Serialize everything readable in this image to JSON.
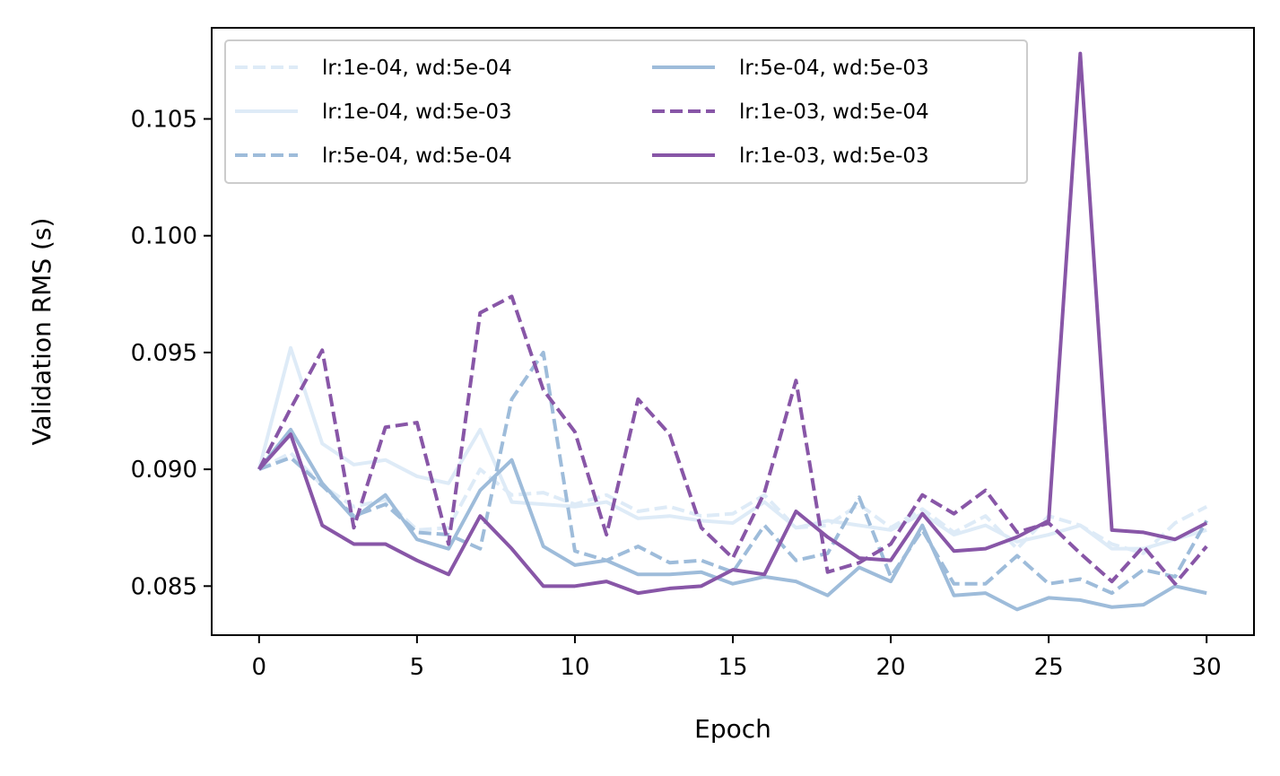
{
  "chart_data": {
    "type": "line",
    "title": "",
    "xlabel": "Epoch",
    "ylabel": "Validation RMS (s)",
    "xlim": [
      -1.5,
      31.5
    ],
    "ylim": [
      0.0829,
      0.1089
    ],
    "xticks": [
      0,
      5,
      10,
      15,
      20,
      25,
      30
    ],
    "yticks": [
      0.085,
      0.09,
      0.095,
      0.1,
      0.105
    ],
    "ytick_labels": [
      "0.085",
      "0.090",
      "0.095",
      "0.100",
      "0.105"
    ],
    "grid": false,
    "legend_position": "upper-left",
    "legend_columns": 2,
    "x": [
      0,
      1,
      2,
      3,
      4,
      5,
      6,
      7,
      8,
      9,
      10,
      11,
      12,
      13,
      14,
      15,
      16,
      17,
      18,
      19,
      20,
      21,
      22,
      23,
      24,
      25,
      26,
      27,
      28,
      29,
      30
    ],
    "series": [
      {
        "name": "lr:1e-04, wd:5e-04",
        "color": "#deebf7",
        "dash": "dashed",
        "values": [
          0.09,
          0.0907,
          0.0893,
          0.0884,
          0.0887,
          0.0874,
          0.0875,
          0.09,
          0.0889,
          0.089,
          0.0885,
          0.0889,
          0.0882,
          0.0884,
          0.088,
          0.0881,
          0.0889,
          0.0875,
          0.0876,
          0.0885,
          0.0875,
          0.0883,
          0.0873,
          0.088,
          0.0866,
          0.088,
          0.0876,
          0.0868,
          0.0864,
          0.0877,
          0.0884
        ]
      },
      {
        "name": "lr:1e-04, wd:5e-03",
        "color": "#deebf7",
        "dash": "solid",
        "values": [
          0.09,
          0.0952,
          0.0911,
          0.0902,
          0.0904,
          0.0897,
          0.0894,
          0.0917,
          0.0886,
          0.0885,
          0.0884,
          0.0886,
          0.0879,
          0.088,
          0.0878,
          0.0877,
          0.0886,
          0.0875,
          0.0878,
          0.0876,
          0.0874,
          0.0881,
          0.0872,
          0.0876,
          0.0869,
          0.0872,
          0.0876,
          0.0866,
          0.0866,
          0.087,
          0.0874
        ]
      },
      {
        "name": "lr:5e-04, wd:5e-04",
        "color": "#9ebcda",
        "dash": "dashed",
        "values": [
          0.09,
          0.0905,
          0.0893,
          0.088,
          0.0885,
          0.0873,
          0.0872,
          0.0866,
          0.093,
          0.095,
          0.0865,
          0.0861,
          0.0867,
          0.086,
          0.0861,
          0.0856,
          0.0876,
          0.0861,
          0.0864,
          0.0888,
          0.0854,
          0.0874,
          0.0851,
          0.0851,
          0.0863,
          0.0851,
          0.0853,
          0.0847,
          0.0857,
          0.0854,
          0.0878
        ]
      },
      {
        "name": "lr:5e-04, wd:5e-03",
        "color": "#9ebcda",
        "dash": "solid",
        "values": [
          0.09,
          0.0917,
          0.0894,
          0.0879,
          0.0889,
          0.087,
          0.0866,
          0.0891,
          0.0904,
          0.0867,
          0.0859,
          0.0861,
          0.0855,
          0.0855,
          0.0856,
          0.0851,
          0.0854,
          0.0852,
          0.0846,
          0.0858,
          0.0852,
          0.0876,
          0.0846,
          0.0847,
          0.084,
          0.0845,
          0.0844,
          0.0841,
          0.0842,
          0.085,
          0.0847
        ]
      },
      {
        "name": "lr:1e-03, wd:5e-04",
        "color": "#8856a7",
        "dash": "dashed",
        "values": [
          0.09,
          0.0926,
          0.0951,
          0.0875,
          0.0918,
          0.092,
          0.0868,
          0.0967,
          0.0974,
          0.0934,
          0.0916,
          0.0872,
          0.093,
          0.0915,
          0.0875,
          0.0862,
          0.089,
          0.0938,
          0.0856,
          0.086,
          0.0868,
          0.0889,
          0.0881,
          0.0891,
          0.0873,
          0.0877,
          0.0864,
          0.0852,
          0.0867,
          0.0851,
          0.0867
        ]
      },
      {
        "name": "lr:1e-03, wd:5e-03",
        "color": "#8856a7",
        "dash": "solid",
        "values": [
          0.09,
          0.0915,
          0.0876,
          0.0868,
          0.0868,
          0.0861,
          0.0855,
          0.088,
          0.0866,
          0.085,
          0.085,
          0.0852,
          0.0847,
          0.0849,
          0.085,
          0.0857,
          0.0855,
          0.0882,
          0.0871,
          0.0862,
          0.0861,
          0.0881,
          0.0865,
          0.0866,
          0.0871,
          0.0878,
          0.1078,
          0.0874,
          0.0873,
          0.087,
          0.0877
        ]
      }
    ]
  }
}
